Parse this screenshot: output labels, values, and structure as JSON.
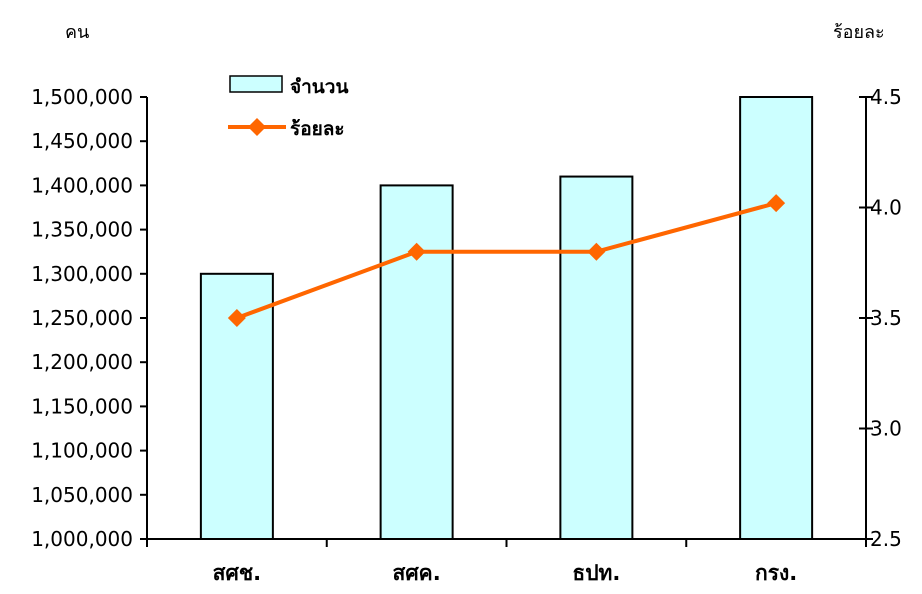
{
  "chart_data": {
    "type": "bar",
    "categories": [
      "สศช.",
      "สศค.",
      "ธปท.",
      "กรง."
    ],
    "series": [
      {
        "name": "จำนวน",
        "type": "bar",
        "axis": "left",
        "values": [
          1300000,
          1400000,
          1410000,
          1500000
        ],
        "color": "#CCFFFF"
      },
      {
        "name": "ร้อยละ",
        "type": "line",
        "axis": "right",
        "values": [
          3.5,
          3.8,
          3.8,
          4.02
        ],
        "color": "#FF6600"
      }
    ],
    "ylabel": "คน",
    "y2label": "ร้อยละ",
    "ylim": [
      1000000,
      1500000
    ],
    "y2lim": [
      2.5,
      4.5
    ],
    "yticks": [
      "1,000,000",
      "1,050,000",
      "1,100,000",
      "1,150,000",
      "1,200,000",
      "1,250,000",
      "1,300,000",
      "1,350,000",
      "1,400,000",
      "1,450,000",
      "1,500,000"
    ],
    "y2ticks": [
      "2.5",
      "3.0",
      "3.5",
      "4.0",
      "4.5"
    ],
    "grid": false,
    "legend_position": "top-left"
  }
}
